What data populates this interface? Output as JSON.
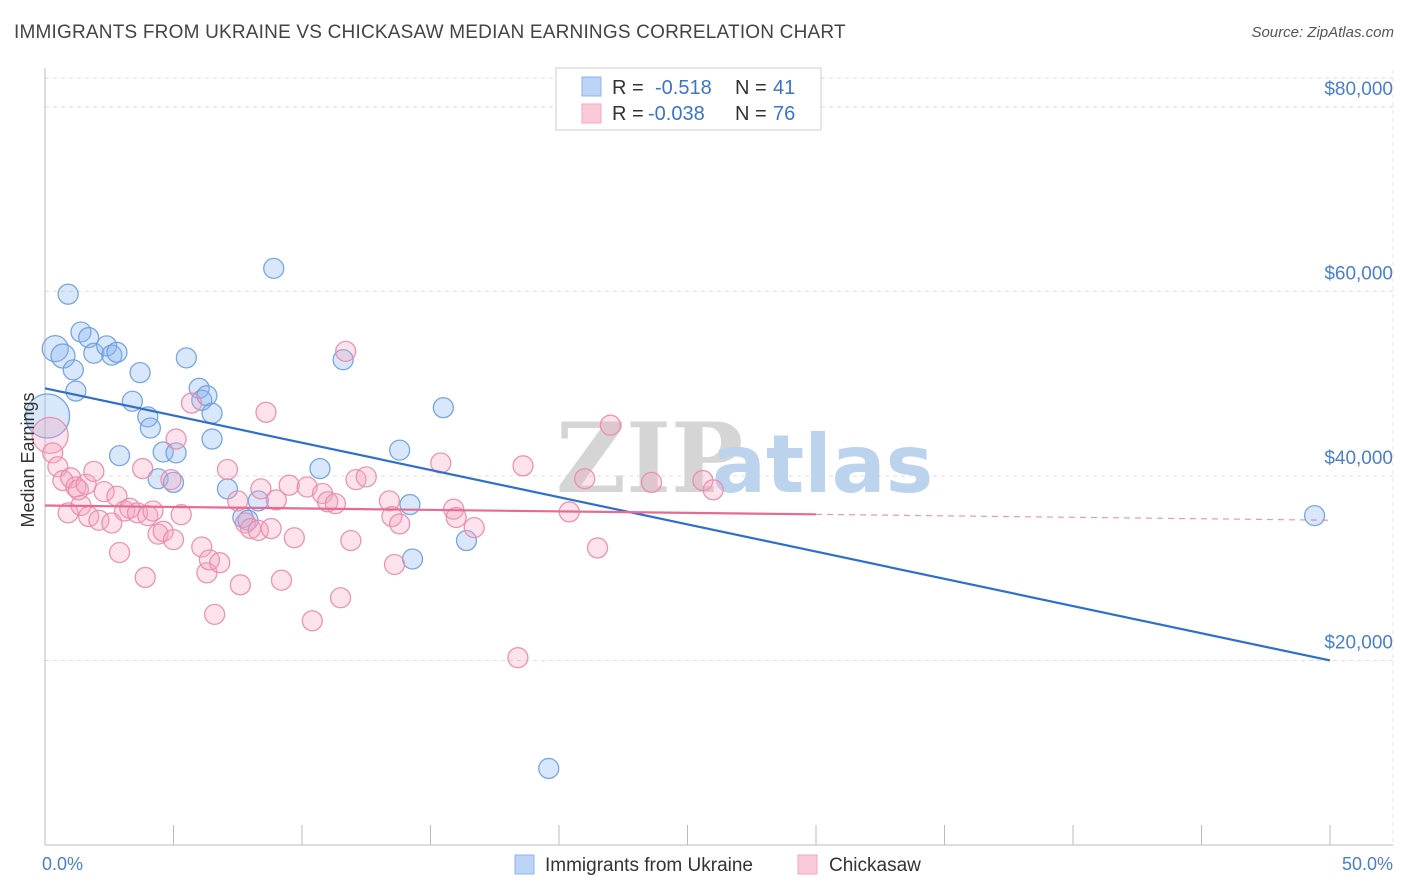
{
  "title": "IMMIGRANTS FROM UKRAINE VS CHICKASAW MEDIAN EARNINGS CORRELATION CHART",
  "source": "Source: ZipAtlas.com",
  "watermark": {
    "part1": "ZIP",
    "part2": "atlas"
  },
  "chart_data": {
    "type": "scatter",
    "xlabel": "",
    "ylabel": "Median Earnings",
    "xlim": [
      0,
      50
    ],
    "ylim": [
      0,
      84000
    ],
    "x_tick_labels": [
      "0.0%",
      "50.0%"
    ],
    "y_ticks": [
      {
        "value": 20000,
        "label": "$20,000"
      },
      {
        "value": 40000,
        "label": "$40,000"
      },
      {
        "value": 60000,
        "label": "$60,000"
      },
      {
        "value": 80000,
        "label": "$80,000"
      }
    ],
    "legend": [
      {
        "r_label": "R =",
        "r_value": "-0.518",
        "n_label": "N =",
        "n_value": "41",
        "color": "#8ab4f0",
        "name": "Immigrants from Ukraine"
      },
      {
        "r_label": "R =",
        "r_value": "-0.038",
        "n_label": "N =",
        "n_value": "76",
        "color": "#f4a6c0",
        "name": "Chickasaw"
      }
    ],
    "series": [
      {
        "name": "Immigrants from Ukraine",
        "color": "#8ab4f0",
        "stroke": "#6a9de0",
        "trend": {
          "x0": 0,
          "y0": 49500,
          "x1": 50,
          "y1": 20000,
          "solid_until": 50,
          "color": "#2f6fcc"
        },
        "points": [
          [
            0.1,
            46500,
            22
          ],
          [
            0.4,
            53800,
            13
          ],
          [
            0.7,
            53000,
            12
          ],
          [
            0.9,
            59700,
            10
          ],
          [
            1.1,
            51500,
            10
          ],
          [
            1.2,
            49200,
            10
          ],
          [
            1.4,
            55600,
            10
          ],
          [
            1.7,
            55000,
            10
          ],
          [
            1.9,
            53300,
            10
          ],
          [
            2.4,
            54100,
            10
          ],
          [
            2.6,
            53100,
            10
          ],
          [
            2.8,
            53400,
            10
          ],
          [
            2.9,
            42200,
            10
          ],
          [
            3.4,
            48100,
            10
          ],
          [
            3.7,
            51200,
            10
          ],
          [
            4.0,
            46400,
            10
          ],
          [
            4.1,
            45200,
            10
          ],
          [
            4.4,
            39700,
            10
          ],
          [
            4.6,
            42600,
            10
          ],
          [
            5.0,
            39300,
            10
          ],
          [
            5.1,
            42500,
            10
          ],
          [
            5.5,
            52800,
            10
          ],
          [
            6.0,
            49500,
            10
          ],
          [
            6.1,
            48200,
            10
          ],
          [
            6.3,
            48700,
            10
          ],
          [
            6.5,
            46800,
            10
          ],
          [
            6.5,
            44000,
            10
          ],
          [
            7.1,
            38600,
            10
          ],
          [
            7.7,
            35500,
            10
          ],
          [
            7.9,
            35200,
            10
          ],
          [
            8.3,
            37300,
            10
          ],
          [
            8.9,
            62500,
            10
          ],
          [
            10.7,
            40800,
            10
          ],
          [
            11.6,
            52600,
            10
          ],
          [
            13.8,
            42800,
            10
          ],
          [
            14.2,
            36900,
            10
          ],
          [
            14.3,
            31000,
            10
          ],
          [
            15.5,
            47400,
            10
          ],
          [
            16.4,
            33000,
            10
          ],
          [
            19.6,
            8300,
            10
          ],
          [
            49.4,
            35700,
            10
          ]
        ]
      },
      {
        "name": "Chickasaw",
        "color": "#f4a6c0",
        "stroke": "#ea8aab",
        "trend": {
          "x0": 0,
          "y0": 36800,
          "x1": 50,
          "y1": 35200,
          "solid_until": 30,
          "color": "#e86a92"
        },
        "points": [
          [
            0.2,
            44400,
            18
          ],
          [
            0.3,
            42500,
            10
          ],
          [
            0.5,
            41000,
            10
          ],
          [
            0.7,
            39500,
            10
          ],
          [
            0.9,
            36000,
            10
          ],
          [
            1.0,
            39800,
            10
          ],
          [
            1.2,
            38800,
            10
          ],
          [
            1.3,
            38500,
            10
          ],
          [
            1.4,
            36800,
            10
          ],
          [
            1.6,
            39100,
            10
          ],
          [
            1.7,
            35600,
            10
          ],
          [
            1.9,
            40500,
            10
          ],
          [
            2.1,
            35200,
            10
          ],
          [
            2.3,
            38300,
            10
          ],
          [
            2.6,
            34900,
            10
          ],
          [
            2.8,
            37800,
            10
          ],
          [
            2.9,
            31700,
            10
          ],
          [
            3.1,
            36200,
            10
          ],
          [
            3.3,
            36500,
            10
          ],
          [
            3.6,
            36000,
            10
          ],
          [
            3.8,
            40800,
            10
          ],
          [
            4.0,
            35700,
            10
          ],
          [
            3.9,
            29000,
            10
          ],
          [
            4.2,
            36200,
            10
          ],
          [
            4.4,
            33700,
            10
          ],
          [
            4.6,
            34000,
            10
          ],
          [
            4.9,
            39600,
            10
          ],
          [
            5.0,
            33100,
            10
          ],
          [
            5.3,
            35800,
            10
          ],
          [
            5.1,
            44000,
            10
          ],
          [
            5.7,
            47900,
            10
          ],
          [
            6.1,
            32300,
            10
          ],
          [
            6.3,
            29500,
            10
          ],
          [
            6.4,
            30900,
            10
          ],
          [
            6.6,
            25000,
            10
          ],
          [
            6.8,
            30600,
            10
          ],
          [
            7.1,
            40700,
            10
          ],
          [
            7.5,
            37300,
            10
          ],
          [
            7.6,
            28200,
            10
          ],
          [
            7.8,
            34900,
            10
          ],
          [
            8.0,
            34300,
            10
          ],
          [
            8.3,
            34100,
            10
          ],
          [
            8.4,
            38600,
            10
          ],
          [
            8.6,
            46900,
            10
          ],
          [
            8.8,
            34300,
            10
          ],
          [
            9.0,
            37400,
            10
          ],
          [
            9.2,
            28700,
            10
          ],
          [
            9.5,
            39000,
            10
          ],
          [
            9.7,
            33300,
            10
          ],
          [
            10.2,
            38800,
            10
          ],
          [
            10.4,
            24300,
            10
          ],
          [
            10.8,
            38100,
            10
          ],
          [
            11.0,
            37200,
            10
          ],
          [
            11.3,
            37000,
            10
          ],
          [
            11.5,
            26800,
            10
          ],
          [
            11.7,
            53500,
            10
          ],
          [
            11.9,
            33000,
            10
          ],
          [
            12.1,
            39600,
            10
          ],
          [
            12.5,
            39900,
            10
          ],
          [
            13.4,
            37300,
            10
          ],
          [
            13.5,
            35600,
            10
          ],
          [
            13.6,
            30400,
            10
          ],
          [
            13.8,
            34800,
            10
          ],
          [
            15.4,
            41400,
            10
          ],
          [
            15.9,
            36400,
            10
          ],
          [
            16.0,
            35500,
            10
          ],
          [
            16.7,
            34400,
            10
          ],
          [
            18.6,
            41100,
            10
          ],
          [
            18.4,
            20300,
            10
          ],
          [
            20.4,
            36100,
            10
          ],
          [
            21.0,
            39700,
            10
          ],
          [
            21.5,
            32200,
            10
          ],
          [
            22.0,
            45500,
            10
          ],
          [
            23.6,
            39300,
            10
          ],
          [
            25.6,
            39500,
            10
          ],
          [
            26.0,
            38500,
            10
          ]
        ]
      }
    ]
  }
}
